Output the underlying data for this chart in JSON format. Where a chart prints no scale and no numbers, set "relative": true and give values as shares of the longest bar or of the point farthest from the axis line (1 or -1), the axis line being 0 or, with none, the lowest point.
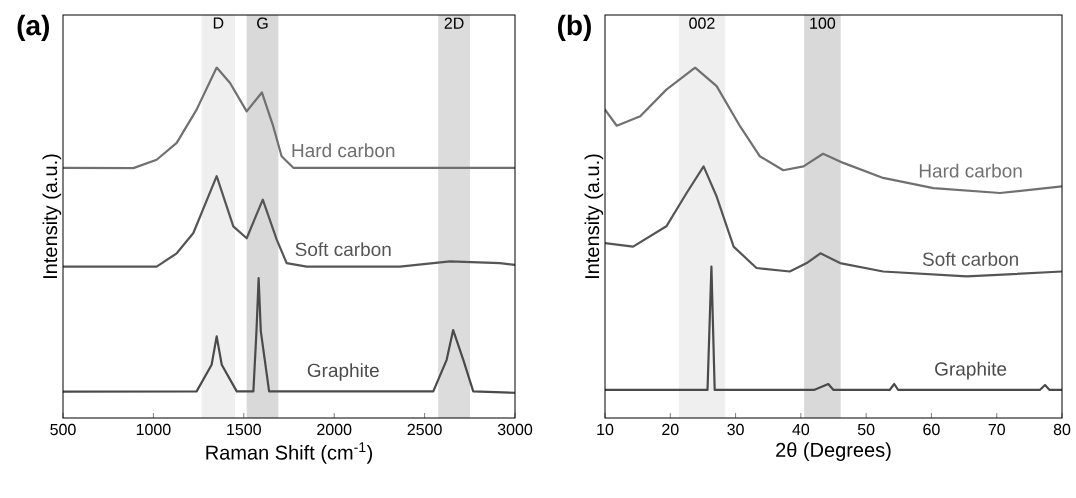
{
  "chart_data": [
    {
      "type": "line",
      "title": "(a)",
      "xlabel": "Raman Shift (cm$^{-1}$)",
      "ylabel": "Intensity (a.u.)",
      "relative": true,
      "xlim": [
        500,
        3000
      ],
      "xticks": [
        500,
        1000,
        1500,
        2000,
        2500,
        3000
      ],
      "bands": [
        {
          "axis": "x",
          "from": 1267,
          "to": 1451,
          "label": "D",
          "color": "#efefef"
        },
        {
          "axis": "x",
          "from": 1516,
          "to": 1691,
          "label": "G",
          "color": "#d9d9d9"
        },
        {
          "axis": "x",
          "from": 2575,
          "to": 2751,
          "label": "2D",
          "color": "#dcdcdc"
        }
      ],
      "series": [
        {
          "name": "Hard carbon",
          "color": "#707070",
          "x": [
            500,
            889,
            1018,
            1129,
            1239,
            1350,
            1424,
            1516,
            1600,
            1663,
            1709,
            1774,
            3000
          ],
          "values": [
            0.714,
            0.713,
            0.737,
            0.785,
            0.88,
            1.0,
            0.956,
            0.875,
            0.929,
            0.832,
            0.747,
            0.714,
            0.714
          ]
        },
        {
          "name": "Soft carbon",
          "color": "#555555",
          "x": [
            500,
            1018,
            1129,
            1221,
            1350,
            1442,
            1516,
            1605,
            1682,
            1737,
            1848,
            2364,
            2640,
            2917,
            3000
          ],
          "values": [
            0.432,
            0.432,
            0.47,
            0.528,
            0.69,
            0.547,
            0.513,
            0.623,
            0.509,
            0.442,
            0.432,
            0.432,
            0.447,
            0.442,
            0.437
          ]
        },
        {
          "name": "Graphite",
          "color": "#4a4a4a",
          "x": [
            500,
            1239,
            1322,
            1350,
            1378,
            1461,
            1553,
            1570,
            1582,
            1594,
            1640,
            2548,
            2622,
            2658,
            2714,
            2769,
            3000
          ],
          "values": [
            0.075,
            0.076,
            0.152,
            0.233,
            0.152,
            0.076,
            0.076,
            0.248,
            0.399,
            0.248,
            0.076,
            0.076,
            0.166,
            0.251,
            0.166,
            0.076,
            0.072
          ]
        }
      ]
    },
    {
      "type": "line",
      "title": "(b)",
      "xlabel": "2θ (Degrees)",
      "ylabel": "Intensity (a.u.)",
      "relative": true,
      "xlim": [
        10,
        80
      ],
      "xticks": [
        10,
        20,
        30,
        40,
        50,
        60,
        70,
        80
      ],
      "bands": [
        {
          "axis": "x",
          "from": 21.3,
          "to": 28.4,
          "label": "002",
          "color": "#efefef"
        },
        {
          "axis": "x",
          "from": 40.5,
          "to": 46.1,
          "label": "100",
          "color": "#d9d9d9"
        }
      ],
      "series": [
        {
          "name": "Hard carbon",
          "color": "#707070",
          "x": [
            10,
            11.8,
            15.4,
            19.4,
            23.8,
            27.1,
            30.7,
            33.7,
            37.3,
            40.4,
            43.4,
            46.5,
            52.6,
            60.3,
            70.5,
            80
          ],
          "values": [
            0.88,
            0.834,
            0.861,
            0.937,
            1.0,
            0.947,
            0.832,
            0.747,
            0.707,
            0.718,
            0.754,
            0.728,
            0.685,
            0.656,
            0.642,
            0.661
          ]
        },
        {
          "name": "Soft carbon",
          "color": "#555555",
          "x": [
            10,
            14.3,
            19.4,
            22.5,
            25.1,
            27.1,
            29.7,
            33.2,
            38.3,
            40.9,
            43.0,
            46.0,
            52.6,
            65.4,
            80
          ],
          "values": [
            0.499,
            0.489,
            0.547,
            0.642,
            0.718,
            0.632,
            0.489,
            0.428,
            0.418,
            0.442,
            0.47,
            0.442,
            0.418,
            0.404,
            0.418
          ]
        },
        {
          "name": "Graphite",
          "color": "#4a4a4a",
          "x": [
            10,
            25.7,
            26.3,
            26.8,
            42.0,
            44.2,
            45.0,
            53.6,
            54.3,
            54.9,
            76.6,
            77.4,
            78.1,
            80
          ],
          "values": [
            0.08,
            0.08,
            0.432,
            0.08,
            0.08,
            0.097,
            0.08,
            0.08,
            0.097,
            0.08,
            0.08,
            0.094,
            0.08,
            0.08
          ]
        }
      ]
    }
  ]
}
